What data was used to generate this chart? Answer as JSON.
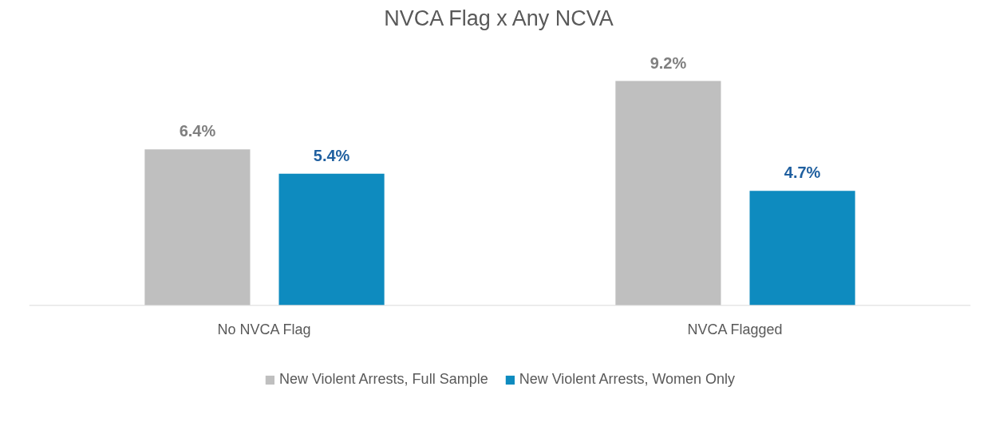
{
  "chart_data": {
    "type": "bar",
    "title": "NVCA Flag x Any NCVA",
    "categories": [
      "No NVCA Flag",
      "NVCA Flagged"
    ],
    "series": [
      {
        "name": "New Violent Arrests, Full Sample",
        "color": "#bfbfbf",
        "values": [
          6.4,
          9.2
        ],
        "value_labels": [
          "6.4%",
          "9.2%"
        ]
      },
      {
        "name": "New Violent Arrests, Women Only",
        "color": "#0e8bbf",
        "values": [
          5.4,
          4.7
        ],
        "value_labels": [
          "5.4%",
          "4.7%"
        ]
      }
    ],
    "legend": "bottom"
  }
}
